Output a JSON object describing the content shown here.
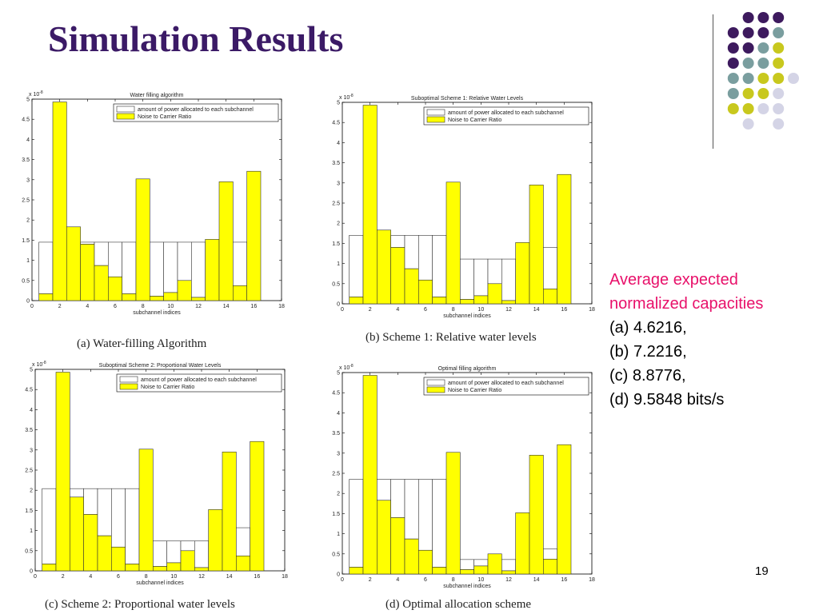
{
  "slide": {
    "title": "Simulation Results",
    "page_number": "19",
    "colors": {
      "title": "#3b1a66",
      "highlight": "#e8106a",
      "bar_fill": "#ffff00",
      "accent_purple": "#3d1a5e",
      "accent_teal": "#7a9e9f",
      "accent_yellow": "#c8c81e",
      "accent_lavender": "#d4d4e6"
    },
    "side_text": {
      "heading_line1": "Average expected",
      "heading_line2": "normalized capacities",
      "items": [
        "(a) 4.6216,",
        "(b) 7.2216,",
        "(c) 8.8776,",
        "(d) 9.5848 bits/s"
      ]
    }
  },
  "chart_common": {
    "exponent": "x 10",
    "exponent_power": "-8",
    "xlabel": "subchannel indices",
    "legend": [
      "amount of power allocated to each subchannel",
      "Noise to Carrier Ratio"
    ],
    "x_ticks": [
      "0",
      "2",
      "4",
      "6",
      "8",
      "10",
      "12",
      "14",
      "16",
      "18"
    ],
    "y_ticks": [
      "0",
      "0.5",
      "1",
      "1.5",
      "2",
      "2.5",
      "3",
      "3.5",
      "4",
      "4.5",
      "5"
    ],
    "xlim": [
      0,
      18
    ],
    "ylim": [
      0,
      5
    ]
  },
  "chart_data": [
    {
      "type": "bar",
      "title": "Water filling algorithm",
      "caption": "(a)  Water-filling Algorithm",
      "categories": [
        1,
        2,
        3,
        4,
        5,
        6,
        7,
        8,
        9,
        10,
        11,
        12,
        13,
        14,
        15,
        16
      ],
      "series": [
        {
          "name": "amount of power allocated to each subchannel",
          "values": [
            1.28,
            0,
            0,
            0.05,
            0.58,
            0.86,
            1.28,
            0,
            1.34,
            1.25,
            0.95,
            1.37,
            0,
            0,
            1.08,
            0
          ]
        },
        {
          "name": "Noise to Carrier Ratio",
          "values": [
            0.17,
            4.93,
            1.83,
            1.4,
            0.87,
            0.59,
            0.17,
            3.02,
            0.11,
            0.2,
            0.5,
            0.08,
            1.52,
            2.95,
            0.37,
            3.21
          ]
        }
      ],
      "water_level": 1.45,
      "xlim": [
        0,
        18
      ],
      "ylim": [
        0,
        5
      ]
    },
    {
      "type": "bar",
      "title": "Suboptimal Scheme 1: Relative Water Levels",
      "caption": "(b)  Scheme 1: Relative water levels",
      "categories": [
        1,
        2,
        3,
        4,
        5,
        6,
        7,
        8,
        9,
        10,
        11,
        12,
        13,
        14,
        15,
        16
      ],
      "series": [
        {
          "name": "amount of power allocated to each subchannel",
          "values": [
            1.53,
            0,
            0,
            0.3,
            0.83,
            1.11,
            1.53,
            0,
            1.0,
            0.91,
            0.61,
            1.03,
            0,
            0,
            1.03,
            0
          ]
        },
        {
          "name": "Noise to Carrier Ratio",
          "values": [
            0.17,
            4.93,
            1.83,
            1.4,
            0.87,
            0.59,
            0.17,
            3.02,
            0.11,
            0.2,
            0.5,
            0.08,
            1.52,
            2.95,
            0.37,
            3.21
          ]
        }
      ],
      "levels": [
        1.7,
        0,
        0,
        1.7,
        1.7,
        1.7,
        1.7,
        0,
        1.11,
        1.11,
        1.11,
        1.11,
        0,
        0,
        1.4,
        0
      ],
      "xlim": [
        0,
        18
      ],
      "ylim": [
        0,
        5
      ]
    },
    {
      "type": "bar",
      "title": "Suboptimal Scheme 2: Proportional Water Levels",
      "caption": "(c)  Scheme 2: Proportional water levels",
      "categories": [
        1,
        2,
        3,
        4,
        5,
        6,
        7,
        8,
        9,
        10,
        11,
        12,
        13,
        14,
        15,
        16
      ],
      "series": [
        {
          "name": "amount of power allocated to each subchannel",
          "values": [
            1.87,
            0,
            0.21,
            0.64,
            1.17,
            1.45,
            1.87,
            0,
            0.63,
            0.54,
            0.24,
            0.66,
            0,
            0,
            0.7,
            0
          ]
        },
        {
          "name": "Noise to Carrier Ratio",
          "values": [
            0.17,
            4.93,
            1.83,
            1.4,
            0.87,
            0.59,
            0.17,
            3.02,
            0.11,
            0.2,
            0.5,
            0.08,
            1.52,
            2.95,
            0.37,
            3.21
          ]
        }
      ],
      "levels": [
        2.04,
        0,
        2.04,
        2.04,
        2.04,
        2.04,
        2.04,
        0,
        0.74,
        0.74,
        0.74,
        0.74,
        0,
        0,
        1.07,
        0
      ],
      "xlim": [
        0,
        18
      ],
      "ylim": [
        0,
        5
      ]
    },
    {
      "type": "bar",
      "title": "Optimal filling algorithm",
      "caption": "(d)  Optimal allocation scheme",
      "categories": [
        1,
        2,
        3,
        4,
        5,
        6,
        7,
        8,
        9,
        10,
        11,
        12,
        13,
        14,
        15,
        16
      ],
      "series": [
        {
          "name": "amount of power allocated to each subchannel",
          "values": [
            2.18,
            0,
            0.52,
            0.95,
            1.48,
            1.76,
            2.18,
            0,
            0.25,
            0.16,
            0,
            0.28,
            0,
            0,
            0.25,
            0
          ]
        },
        {
          "name": "Noise to Carrier Ratio",
          "values": [
            0.17,
            4.93,
            1.83,
            1.4,
            0.87,
            0.59,
            0.17,
            3.02,
            0.11,
            0.2,
            0.5,
            0.08,
            1.52,
            2.95,
            0.37,
            3.21
          ]
        }
      ],
      "levels": [
        2.35,
        0,
        2.35,
        2.35,
        2.35,
        2.35,
        2.35,
        0,
        0.36,
        0.36,
        0,
        0.36,
        0,
        0,
        0.62,
        0
      ],
      "xlim": [
        0,
        18
      ],
      "ylim": [
        0,
        5
      ]
    }
  ]
}
